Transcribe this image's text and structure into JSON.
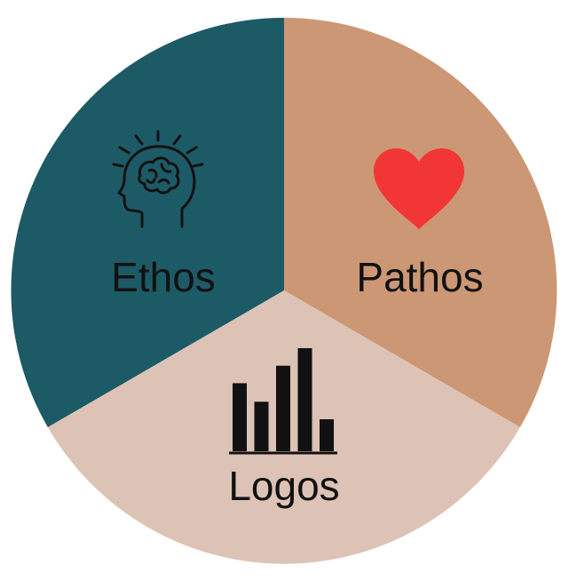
{
  "segments": [
    {
      "key": "ethos",
      "label": "Ethos",
      "color": "#1c5a66",
      "icon": "brain-head-icon"
    },
    {
      "key": "pathos",
      "label": "Pathos",
      "color": "#cc9774",
      "icon": "heart-icon",
      "icon_color": "#f23535"
    },
    {
      "key": "logos",
      "label": "Logos",
      "color": "#dcc3b5",
      "icon": "bar-chart-icon"
    }
  ],
  "logos_chart_icon": {
    "bars": [
      0.66,
      0.48,
      0.83,
      1.0,
      0.31
    ]
  }
}
